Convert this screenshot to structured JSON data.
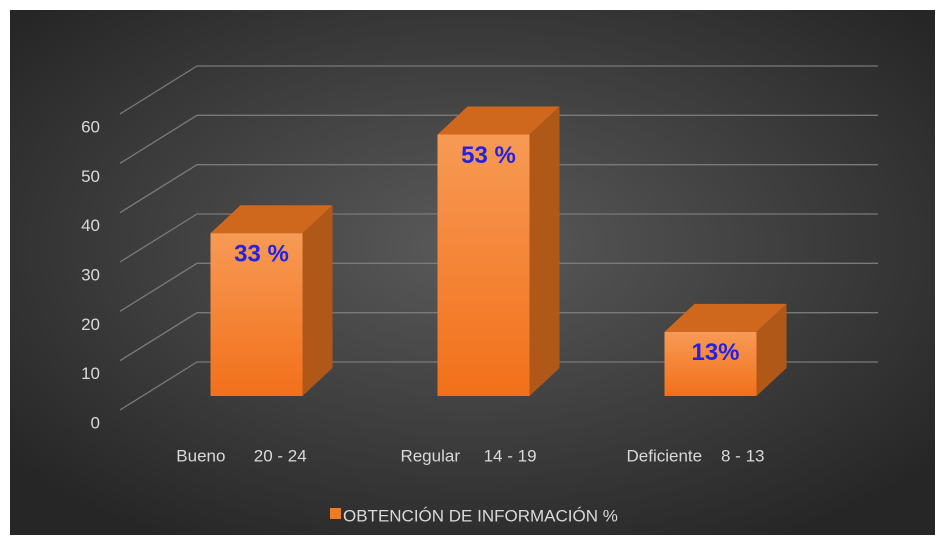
{
  "chart_data": {
    "type": "bar3d",
    "categories": [
      "Bueno      20 - 24",
      "Regular     14 - 19",
      "Deficiente    8 - 13"
    ],
    "series": [
      {
        "name": "OBTENCIÓN DE INFORMACIÓN %",
        "color": "#f47a22",
        "values": [
          33,
          53,
          13
        ],
        "value_labels": [
          "33 %",
          "53 %",
          "13%"
        ]
      }
    ],
    "ylim": [
      0,
      60
    ],
    "yticks": [
      0,
      10,
      20,
      30,
      40,
      50,
      60
    ],
    "grid": true,
    "legend": "bottom"
  }
}
